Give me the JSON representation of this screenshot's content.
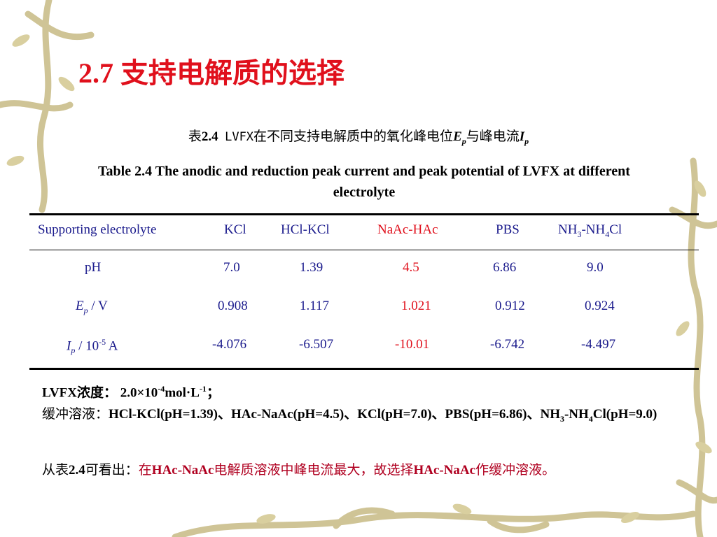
{
  "title": "2.7 支持电解质的选择",
  "caption_cn": {
    "prefix": "表",
    "number": "2.4",
    "subject": "LVFX",
    "text1": "在不同支持电解质中的氧化峰电位",
    "ep_base": "E",
    "ep_sub": "p",
    "text2": "与峰电流",
    "ip_base": "I",
    "ip_sub": "p"
  },
  "caption_en": "Table 2.4 The anodic and reduction peak current and peak potential of LVFX at different electrolyte",
  "table": {
    "headers": {
      "label": "Supporting electrolyte",
      "c1": "KCl",
      "c2": "HCl-KCl",
      "c3": "NaAc-HAc",
      "c4": "PBS",
      "c5_a": "NH",
      "c5_sub1": "3",
      "c5_b": "-NH",
      "c5_sub2": "4",
      "c5_c": "Cl"
    },
    "rows": [
      {
        "label": "pH",
        "values": [
          "7.0",
          "1.39",
          "4.5",
          "6.86",
          "9.0"
        ]
      },
      {
        "label_base": "E",
        "label_sub": "p",
        "label_rest": " / V",
        "values": [
          "0.908",
          "1.117",
          "1.021",
          "0.912",
          "0.924"
        ]
      },
      {
        "label_base": "I",
        "label_sub": "p",
        "label_rest": " / 10",
        "label_sup": "-5",
        "label_unit": " A",
        "values": [
          "-4.076",
          "-6.507",
          "-10.01",
          "-6.742",
          "-4.497"
        ]
      }
    ]
  },
  "notes": {
    "conc_label": "LVFX浓度：",
    "conc_value": "2.0×10",
    "conc_exp": "-4",
    "conc_unit": "mol·L",
    "conc_unit_exp": "-1",
    "conc_end": "；",
    "buffer_label": "缓冲溶液：",
    "buffer_text": "HCl-KCl(pH=1.39)、HAc-NaAc(pH=4.5)、KCl(pH=7.0)、PBS(pH=6.86)、NH",
    "buffer_sub1": "3",
    "buffer_mid": "-NH",
    "buffer_sub2": "4",
    "buffer_end": "Cl(pH=9.0)",
    "conclusion_lead_a": "从表",
    "conclusion_lead_b": "2.4",
    "conclusion_lead_c": "可看出：",
    "conclusion_a": "在",
    "conclusion_b": "HAc-NaAc",
    "conclusion_c": "电解质溶液中峰电流最大，故选择",
    "conclusion_d": "HAc-NaAc",
    "conclusion_e": "作缓冲溶液。"
  },
  "colors": {
    "title": "#e0101c",
    "table_text": "#1a1a8c",
    "highlight": "#e0101c",
    "conclusion": "#b00020",
    "vine": "#c9be8a"
  }
}
